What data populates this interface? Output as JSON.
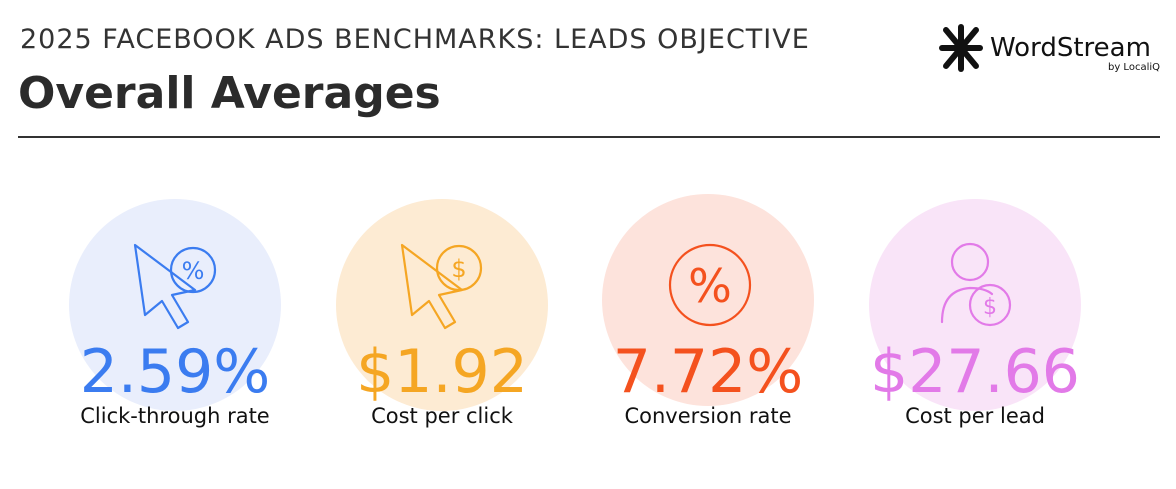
{
  "header": {
    "kicker": "2025 FACEBOOK ADS BENCHMARKS: LEADS OBJECTIVE",
    "title": "Overall Averages"
  },
  "logo": {
    "name": "WordStream",
    "byline": "by LocaliQ"
  },
  "metrics": [
    {
      "value": "2.59%",
      "label": "Click-through rate"
    },
    {
      "value": "$1.92",
      "label": "Cost per click"
    },
    {
      "value": "7.72%",
      "label": "Conversion rate"
    },
    {
      "value": "$27.66",
      "label": "Cost per lead"
    }
  ]
}
